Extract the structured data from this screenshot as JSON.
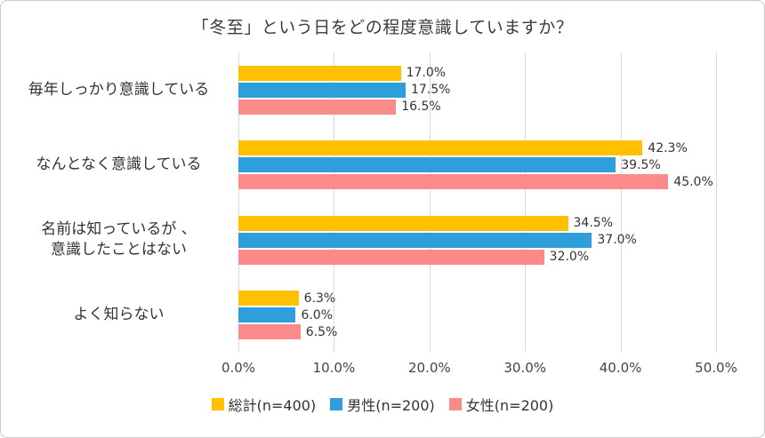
{
  "chart_data": {
    "type": "bar",
    "orientation": "horizontal",
    "title": "「冬至」という日をどの程度意識していますか？",
    "categories": [
      "毎年しっかり意識している",
      "なんとなく意識している",
      "名前は知っているが 、\n意識したことはない",
      "よく知らない"
    ],
    "series": [
      {
        "name": "総計(n=400)",
        "color": "#FFC000",
        "values": [
          17.0,
          42.3,
          34.5,
          6.3
        ]
      },
      {
        "name": "男性(n=200)",
        "color": "#2E9FDA",
        "values": [
          17.5,
          39.5,
          37.0,
          6.0
        ]
      },
      {
        "name": "女性(n=200)",
        "color": "#FB8A8B",
        "values": [
          16.5,
          45.0,
          32.0,
          6.5
        ]
      }
    ],
    "value_labels": [
      [
        "17.0%",
        "17.5%",
        "16.5%"
      ],
      [
        "42.3%",
        "39.5%",
        "45.0%"
      ],
      [
        "34.5%",
        "37.0%",
        "32.0%"
      ],
      [
        "6.3%",
        "6.0%",
        "6.5%"
      ]
    ],
    "xticks": [
      "0.0%",
      "10.0%",
      "20.0%",
      "30.0%",
      "40.0%",
      "50.0%"
    ],
    "xlim": [
      0,
      50
    ],
    "grid": true,
    "legend_position": "bottom",
    "gridline_color": "#d9d9d9"
  }
}
